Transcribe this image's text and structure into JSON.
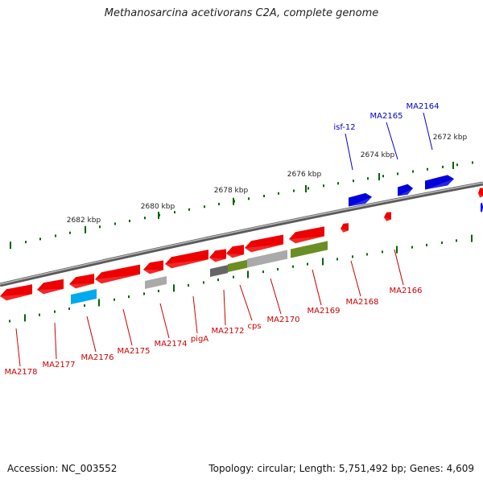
{
  "title": "Methanosarcina acetivorans C2A, complete genome",
  "footer": {
    "accession": "Accession: NC_003552",
    "summary": "Topology: circular; Length: 5,751,492 bp; Genes: 4,609"
  },
  "colors": {
    "forward_gene": "#0000dd",
    "reverse_gene": "#ee0000",
    "rna_gene": "#00aaee",
    "gray_feature": "#aaaaaa",
    "green_feature": "#6b8e23",
    "backbone": "#777777",
    "tick": "#006400",
    "forward_label": "#0000cc",
    "reverse_label": "#cc0000"
  },
  "scale_labels": [
    "2672 kbp",
    "2674 kbp",
    "2676 kbp",
    "2678 kbp",
    "2680 kbp",
    "2682 kbp"
  ],
  "forward_genes": [
    "isf-12",
    "MA2165",
    "MA2164"
  ],
  "reverse_genes": [
    "MA2178",
    "MA2177",
    "MA2176",
    "MA2175",
    "MA2174",
    "pigA",
    "MA2172",
    "cps",
    "MA2170",
    "MA2169",
    "MA2168",
    "MA2166"
  ]
}
